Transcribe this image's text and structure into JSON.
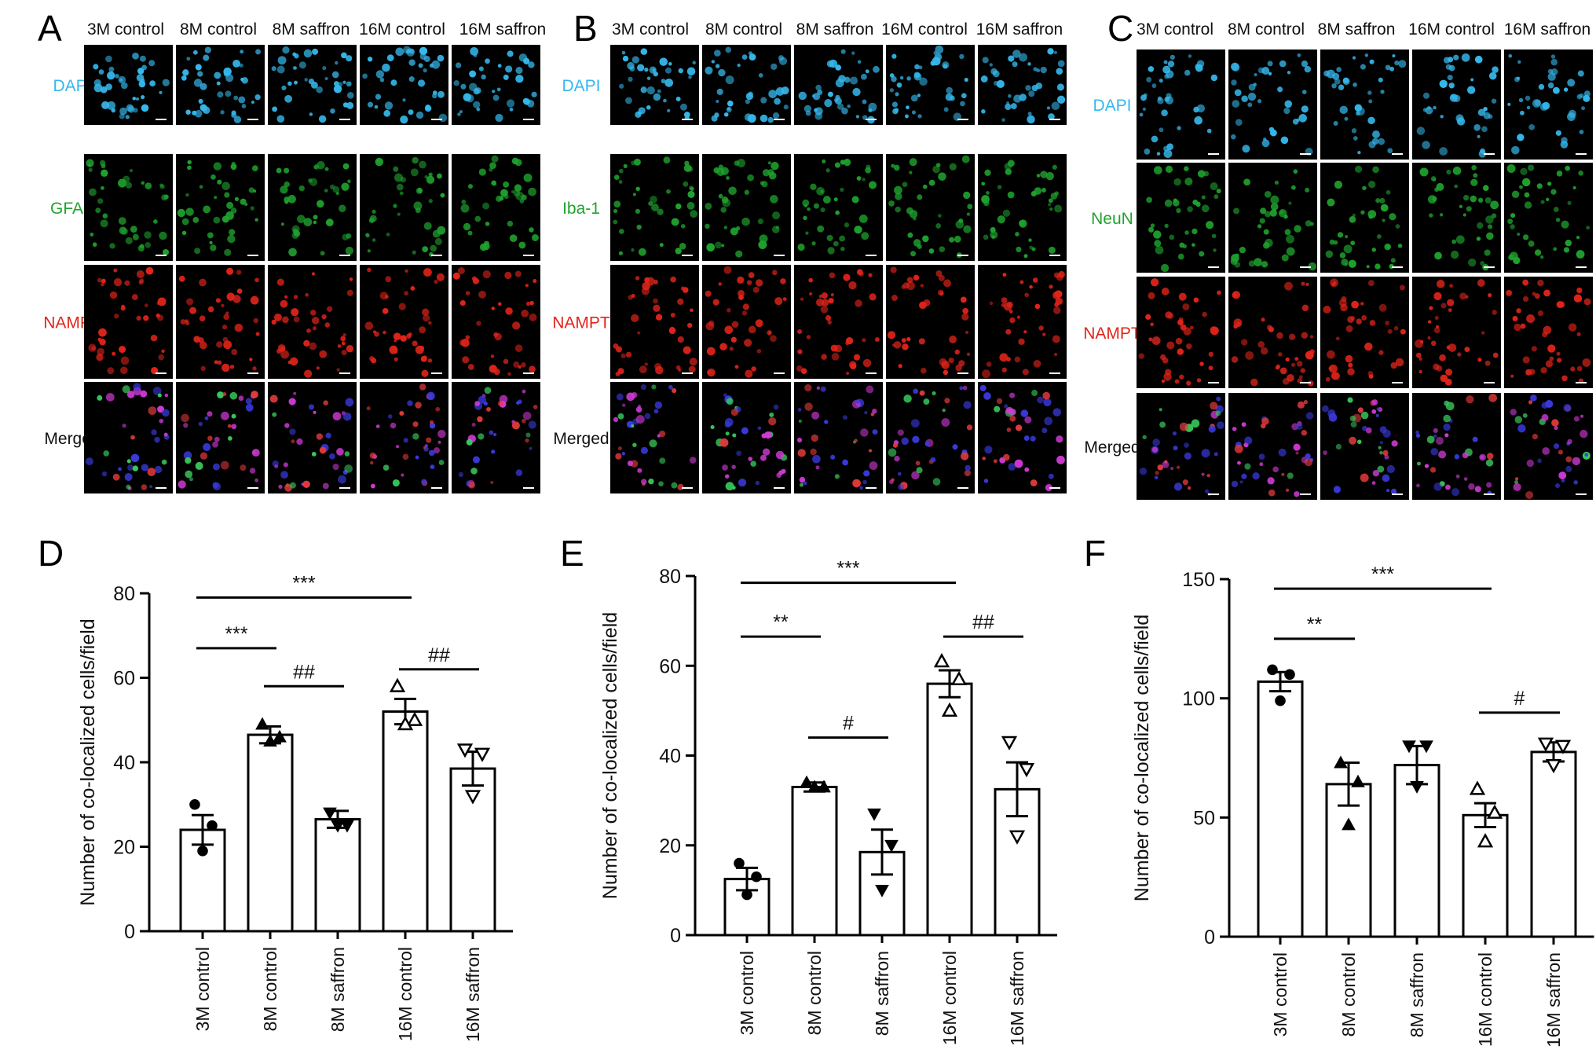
{
  "colors": {
    "dapi": "#35b8ec",
    "green_marker": "#1fa32e",
    "nampt": "#e2241a",
    "text": "#111111",
    "axis": "#000000"
  },
  "micrograph_panels": [
    {
      "letter": "A",
      "columns": [
        "3M control",
        "8M control",
        "8M saffron",
        "16M control",
        "16M saffron"
      ],
      "rows": [
        "DAPI",
        "GFAP",
        "NAMPT",
        "Merged"
      ]
    },
    {
      "letter": "B",
      "columns": [
        "3M control",
        "8M control",
        "8M saffron",
        "16M control",
        "16M saffron"
      ],
      "rows": [
        "DAPI",
        "Iba-1",
        "NAMPT",
        "Merged"
      ]
    },
    {
      "letter": "C",
      "columns": [
        "3M control",
        "8M control",
        "8M saffron",
        "16M control",
        "16M saffron"
      ],
      "rows": [
        "DAPI",
        "NeuN",
        "NAMPT",
        "Merged"
      ]
    }
  ],
  "chart_data": [
    {
      "letter": "D",
      "type": "bar",
      "categories": [
        "3M control",
        "8M control",
        "8M saffron",
        "16M control",
        "16M saffron"
      ],
      "values": [
        24,
        46.5,
        26.5,
        52,
        38.5
      ],
      "sem": [
        3.5,
        2,
        2,
        3,
        4
      ],
      "points": [
        [
          30,
          25,
          19
        ],
        [
          49,
          46,
          45
        ],
        [
          28,
          25,
          25
        ],
        [
          58,
          50,
          49
        ],
        [
          43,
          42,
          32
        ]
      ],
      "markers": [
        "circle",
        "triangle-up",
        "triangle-down",
        "triangle-up-open",
        "triangle-down-open"
      ],
      "ylabel": "Number of co-localized cells/field",
      "ylim": [
        0,
        80
      ],
      "yticks": [
        0,
        20,
        40,
        60,
        80
      ],
      "grid": false,
      "significance": [
        {
          "from": 0,
          "to": 3,
          "label": "***",
          "y": 79
        },
        {
          "from": 0,
          "to": 1,
          "label": "***",
          "y": 67
        },
        {
          "from": 1,
          "to": 2,
          "label": "##",
          "y": 58
        },
        {
          "from": 3,
          "to": 4,
          "label": "##",
          "y": 62
        }
      ]
    },
    {
      "letter": "E",
      "type": "bar",
      "categories": [
        "3M control",
        "8M control",
        "8M saffron",
        "16M control",
        "16M saffron"
      ],
      "values": [
        12.5,
        33,
        18.5,
        56,
        32.5
      ],
      "sem": [
        2.5,
        1,
        5,
        3,
        6
      ],
      "points": [
        [
          16,
          13,
          9
        ],
        [
          34,
          33,
          33
        ],
        [
          27,
          20,
          10
        ],
        [
          61,
          57,
          50
        ],
        [
          43,
          37,
          22
        ]
      ],
      "markers": [
        "circle",
        "triangle-up",
        "triangle-down",
        "triangle-up-open",
        "triangle-down-open"
      ],
      "ylabel": "Number of co-localized cells/field",
      "ylim": [
        0,
        80
      ],
      "yticks": [
        0,
        20,
        40,
        60,
        80
      ],
      "grid": false,
      "significance": [
        {
          "from": 0,
          "to": 3,
          "label": "***",
          "y": 78.5
        },
        {
          "from": 0,
          "to": 1,
          "label": "**",
          "y": 66.5
        },
        {
          "from": 1,
          "to": 2,
          "label": "#",
          "y": 44
        },
        {
          "from": 3,
          "to": 4,
          "label": "##",
          "y": 66.5
        }
      ]
    },
    {
      "letter": "F",
      "type": "bar",
      "categories": [
        "3M control",
        "8M control",
        "8M saffron",
        "16M control",
        "16M saffron"
      ],
      "values": [
        107,
        64,
        72,
        51,
        77.5
      ],
      "sem": [
        4,
        9,
        8,
        5,
        4
      ],
      "points": [
        [
          112,
          110,
          99
        ],
        [
          73,
          65,
          47
        ],
        [
          80,
          80,
          63
        ],
        [
          62,
          52,
          40
        ],
        [
          81,
          80,
          72
        ]
      ],
      "markers": [
        "circle",
        "triangle-up",
        "triangle-down",
        "triangle-up-open",
        "triangle-down-open"
      ],
      "ylabel": "Number of co-localized cells/field",
      "ylim": [
        0,
        150
      ],
      "yticks": [
        0,
        50,
        100,
        150
      ],
      "grid": false,
      "significance": [
        {
          "from": 0,
          "to": 3,
          "label": "***",
          "y": 146
        },
        {
          "from": 0,
          "to": 1,
          "label": "**",
          "y": 125
        },
        {
          "from": 3,
          "to": 4,
          "label": "#",
          "y": 94
        }
      ]
    }
  ]
}
